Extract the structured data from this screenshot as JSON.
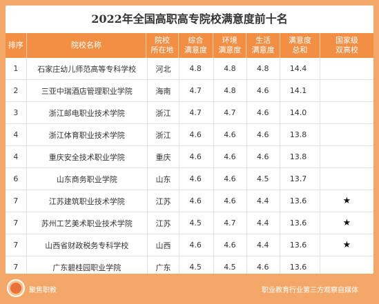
{
  "title": "2022年全国高职高专院校满意度前十名",
  "headers": {
    "rank": "排序",
    "name": "院校名称",
    "location": [
      "院校",
      "所在地"
    ],
    "overall": [
      "综合",
      "满意度"
    ],
    "environment": [
      "环境",
      "满意度"
    ],
    "life": [
      "生活",
      "满意度"
    ],
    "total": [
      "满意度",
      "总和"
    ],
    "double_high": [
      "国家级",
      "双高校"
    ]
  },
  "rows": [
    {
      "rank": "1",
      "name": "石家庄幼儿师范高等专科学校",
      "location": "河北",
      "overall": "4.8",
      "environment": "4.8",
      "life": "4.8",
      "total": "14.4",
      "double_high": ""
    },
    {
      "rank": "2",
      "name": "三亚中瑞酒店管理职业学院",
      "location": "海南",
      "overall": "4.7",
      "environment": "4.8",
      "life": "4.6",
      "total": "14.1",
      "double_high": ""
    },
    {
      "rank": "3",
      "name": "浙江邮电职业技术学院",
      "location": "浙江",
      "overall": "4.7",
      "environment": "4.7",
      "life": "4.6",
      "total": "14.0",
      "double_high": ""
    },
    {
      "rank": "4",
      "name": "浙江体育职业技术学院",
      "location": "浙江",
      "overall": "4.6",
      "environment": "4.6",
      "life": "4.6",
      "total": "13.8",
      "double_high": ""
    },
    {
      "rank": "4",
      "name": "重庆安全技术职业学院",
      "location": "重庆",
      "overall": "4.6",
      "environment": "4.6",
      "life": "4.6",
      "total": "13.8",
      "double_high": ""
    },
    {
      "rank": "6",
      "name": "山东商务职业学院",
      "location": "山东",
      "overall": "4.6",
      "environment": "4.6",
      "life": "4.5",
      "total": "13.7",
      "double_high": ""
    },
    {
      "rank": "7",
      "name": "江苏建筑职业技术学院",
      "location": "江苏",
      "overall": "4.6",
      "environment": "4.6",
      "life": "4.4",
      "total": "13.6",
      "double_high": "★"
    },
    {
      "rank": "7",
      "name": "苏州工艺美术职业技术学院",
      "location": "江苏",
      "overall": "4.5",
      "environment": "4.7",
      "life": "4.4",
      "total": "13.6",
      "double_high": "★"
    },
    {
      "rank": "7",
      "name": "山西省财政税务专科学校",
      "location": "山西",
      "overall": "4.6",
      "environment": "4.6",
      "life": "4.4",
      "total": "13.6",
      "double_high": "★"
    },
    {
      "rank": "7",
      "name": "广东碧桂园职业学院",
      "location": "广东",
      "overall": "4.5",
      "environment": "4.5",
      "life": "4.6",
      "total": "13.6",
      "double_high": ""
    }
  ],
  "footer": {
    "brand": "聚焦职教",
    "tagline": "职业教育行业第三方观察自媒体",
    "logo_icon": "sunflower-logo-icon"
  },
  "colors": {
    "frame": "#f3a86a",
    "header": "#f28f44"
  }
}
